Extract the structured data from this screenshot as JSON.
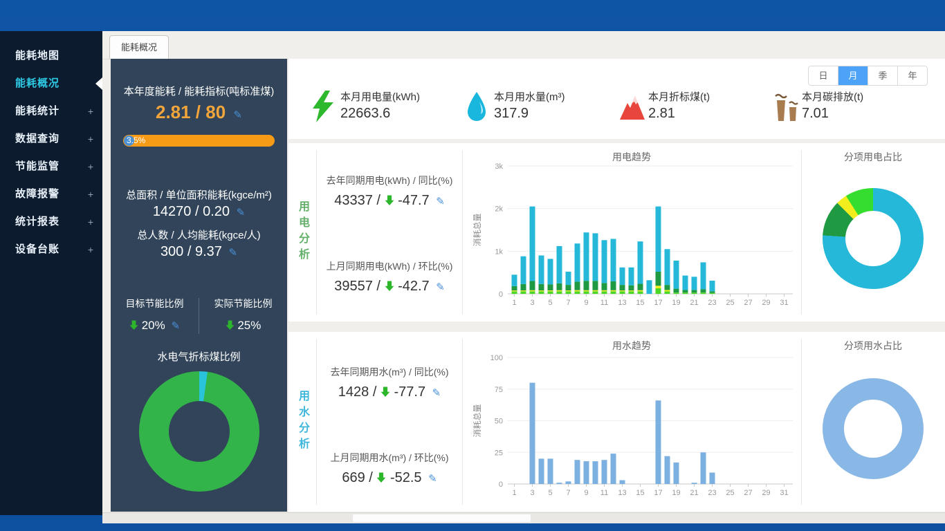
{
  "glyphs": {
    "plus": "+",
    "edit": "✎"
  },
  "colors": {
    "accent_blue": "#4da3f8",
    "orange": "#f79b17",
    "down_green": "#2db52c",
    "active_menu": "#2ec9e4",
    "panel_dark": "#314459",
    "sidebar_dark": "#0d1b2f"
  },
  "tab": {
    "label": "能耗概况"
  },
  "sidebar": {
    "items": [
      {
        "label": "能耗地图",
        "expandable": false,
        "active": false
      },
      {
        "label": "能耗概况",
        "expandable": false,
        "active": true
      },
      {
        "label": "能耗统计",
        "expandable": true,
        "active": false
      },
      {
        "label": "数据查询",
        "expandable": true,
        "active": false
      },
      {
        "label": "节能监管",
        "expandable": true,
        "active": false
      },
      {
        "label": "故障报警",
        "expandable": true,
        "active": false
      },
      {
        "label": "统计报表",
        "expandable": true,
        "active": false
      },
      {
        "label": "设备台账",
        "expandable": true,
        "active": false
      }
    ]
  },
  "overview_panel": {
    "annual_title": "本年度能耗 / 能耗指标(吨标准煤)",
    "annual_value": "2.81 / 80",
    "progress_label": "3.5%",
    "progress_pct": 3.5,
    "area_title": "总面积 / 单位面积能耗(kgce/m²)",
    "area_value": "14270 / 0.20",
    "person_title": "总人数 / 人均能耗(kgce/人)",
    "person_value": "300 / 9.37",
    "target_label": "目标节能比例",
    "target_value": "20%",
    "actual_label": "实际节能比例",
    "actual_value": "25%"
  },
  "stats_cards": [
    {
      "icon": "lightning-bolt-icon",
      "label": "本月用电量(kWh)",
      "value": "22663.6"
    },
    {
      "icon": "water-drop-icon",
      "label": "本月用水量(m³)",
      "value": "317.9"
    },
    {
      "icon": "mountain-icon",
      "label": "本月折标煤(t)",
      "value": "2.81"
    },
    {
      "icon": "factory-icon",
      "label": "本月碳排放(t)",
      "value": "7.01"
    }
  ],
  "period": {
    "options": [
      {
        "label": "日",
        "active": false
      },
      {
        "label": "月",
        "active": true
      },
      {
        "label": "季",
        "active": false
      },
      {
        "label": "年",
        "active": false
      }
    ]
  },
  "electricity_section": {
    "title": "用电分析",
    "yoy_label": "去年同期用电(kWh) / 同比(%)",
    "yoy_value": "43337 /",
    "yoy_pct": "-47.7",
    "mom_label": "上月同期用电(kWh) / 环比(%)",
    "mom_value": "39557 /",
    "mom_pct": "-42.7"
  },
  "water_section": {
    "title": "用水分析",
    "yoy_label": "去年同期用水(m³) / 同比(%)",
    "yoy_value": "1428 /",
    "yoy_pct": "-77.7",
    "mom_label": "上月同期用水(m³) / 环比(%)",
    "mom_value": "669 /",
    "mom_pct": "-52.5"
  },
  "chart_data": [
    {
      "id": "coal-ratio-donut",
      "type": "pie",
      "title": "水电气折标煤比例",
      "legend_position": "none",
      "slices": [
        {
          "name": "electricity-share",
          "value": 2.2,
          "color": "#29c4da"
        },
        {
          "name": "water-share",
          "value": 97.8,
          "color": "#33b44a"
        }
      ]
    },
    {
      "id": "electricity-trend",
      "type": "bar",
      "stacked": true,
      "title": "用电趋势",
      "xlabel": "",
      "ylabel": "消耗总量",
      "ylim": [
        0,
        3000
      ],
      "yticks": [
        {
          "v": 0,
          "label": "0"
        },
        {
          "v": 1000,
          "label": "1k"
        },
        {
          "v": 2000,
          "label": "2k"
        },
        {
          "v": 3000,
          "label": "3k"
        }
      ],
      "x_tick_labels": [
        "1",
        "3",
        "5",
        "7",
        "9",
        "11",
        "13",
        "15",
        "17",
        "19",
        "21",
        "23",
        "25",
        "27",
        "29",
        "31"
      ],
      "series": [
        {
          "name": "segment-lime",
          "color": "#4cd628",
          "values": [
            60,
            60,
            60,
            60,
            60,
            60,
            60,
            60,
            60,
            60,
            60,
            60,
            60,
            60,
            60,
            0,
            130,
            60,
            30,
            30,
            30,
            30,
            20,
            0,
            0,
            0,
            0,
            0,
            0,
            0,
            0
          ]
        },
        {
          "name": "segment-yellow",
          "color": "#f2ed1c",
          "values": [
            20,
            20,
            25,
            20,
            20,
            25,
            20,
            25,
            25,
            25,
            25,
            25,
            20,
            20,
            25,
            0,
            60,
            30,
            0,
            0,
            0,
            0,
            0,
            0,
            0,
            0,
            0,
            0,
            0,
            0,
            0
          ]
        },
        {
          "name": "segment-green",
          "color": "#1f9a43",
          "values": [
            100,
            150,
            215,
            150,
            140,
            160,
            130,
            200,
            220,
            220,
            170,
            210,
            130,
            120,
            150,
            0,
            330,
            120,
            90,
            60,
            60,
            80,
            40,
            0,
            0,
            0,
            0,
            0,
            0,
            0,
            0
          ]
        },
        {
          "name": "segment-cyan",
          "color": "#25b8d9",
          "values": [
            270,
            650,
            1750,
            670,
            600,
            875,
            310,
            895,
            1135,
            1115,
            1005,
            995,
            410,
            420,
            995,
            320,
            1530,
            840,
            660,
            340,
            310,
            630,
            250,
            0,
            0,
            0,
            0,
            0,
            0,
            0,
            0
          ]
        }
      ]
    },
    {
      "id": "electricity-share-donut",
      "type": "pie",
      "title": "分项用电占比",
      "legend_position": "none",
      "slices": [
        {
          "name": "main-electricity",
          "value": 76,
          "color": "#25b8d9"
        },
        {
          "name": "share-green",
          "value": 11.5,
          "color": "#1f9a43"
        },
        {
          "name": "share-yellow",
          "value": 3.5,
          "color": "#f2ed1c"
        },
        {
          "name": "share-lime",
          "value": 9,
          "color": "#35dd2e"
        }
      ]
    },
    {
      "id": "water-trend",
      "type": "bar",
      "stacked": false,
      "title": "用水趋势",
      "xlabel": "",
      "ylabel": "消耗总量",
      "ylim": [
        0,
        100
      ],
      "yticks": [
        {
          "v": 0,
          "label": "0"
        },
        {
          "v": 25,
          "label": "25"
        },
        {
          "v": 50,
          "label": "50"
        },
        {
          "v": 75,
          "label": "75"
        },
        {
          "v": 100,
          "label": "100"
        }
      ],
      "x_tick_labels": [
        "1",
        "3",
        "5",
        "7",
        "9",
        "11",
        "13",
        "15",
        "17",
        "19",
        "21",
        "23",
        "25",
        "27",
        "29",
        "31"
      ],
      "series": [
        {
          "name": "water-usage",
          "color": "#7cb0e0",
          "values": [
            0,
            0,
            80,
            20,
            20,
            1,
            2,
            19,
            18,
            18,
            19,
            24,
            3,
            0,
            0,
            0,
            66,
            22,
            17,
            0,
            1,
            25,
            9,
            0,
            0,
            0,
            0,
            0,
            0,
            0,
            0
          ]
        }
      ]
    },
    {
      "id": "water-share-donut",
      "type": "pie",
      "title": "分项用水占比",
      "legend_position": "none",
      "slices": [
        {
          "name": "main-water",
          "value": 100,
          "color": "#8ab8e6"
        }
      ]
    }
  ]
}
